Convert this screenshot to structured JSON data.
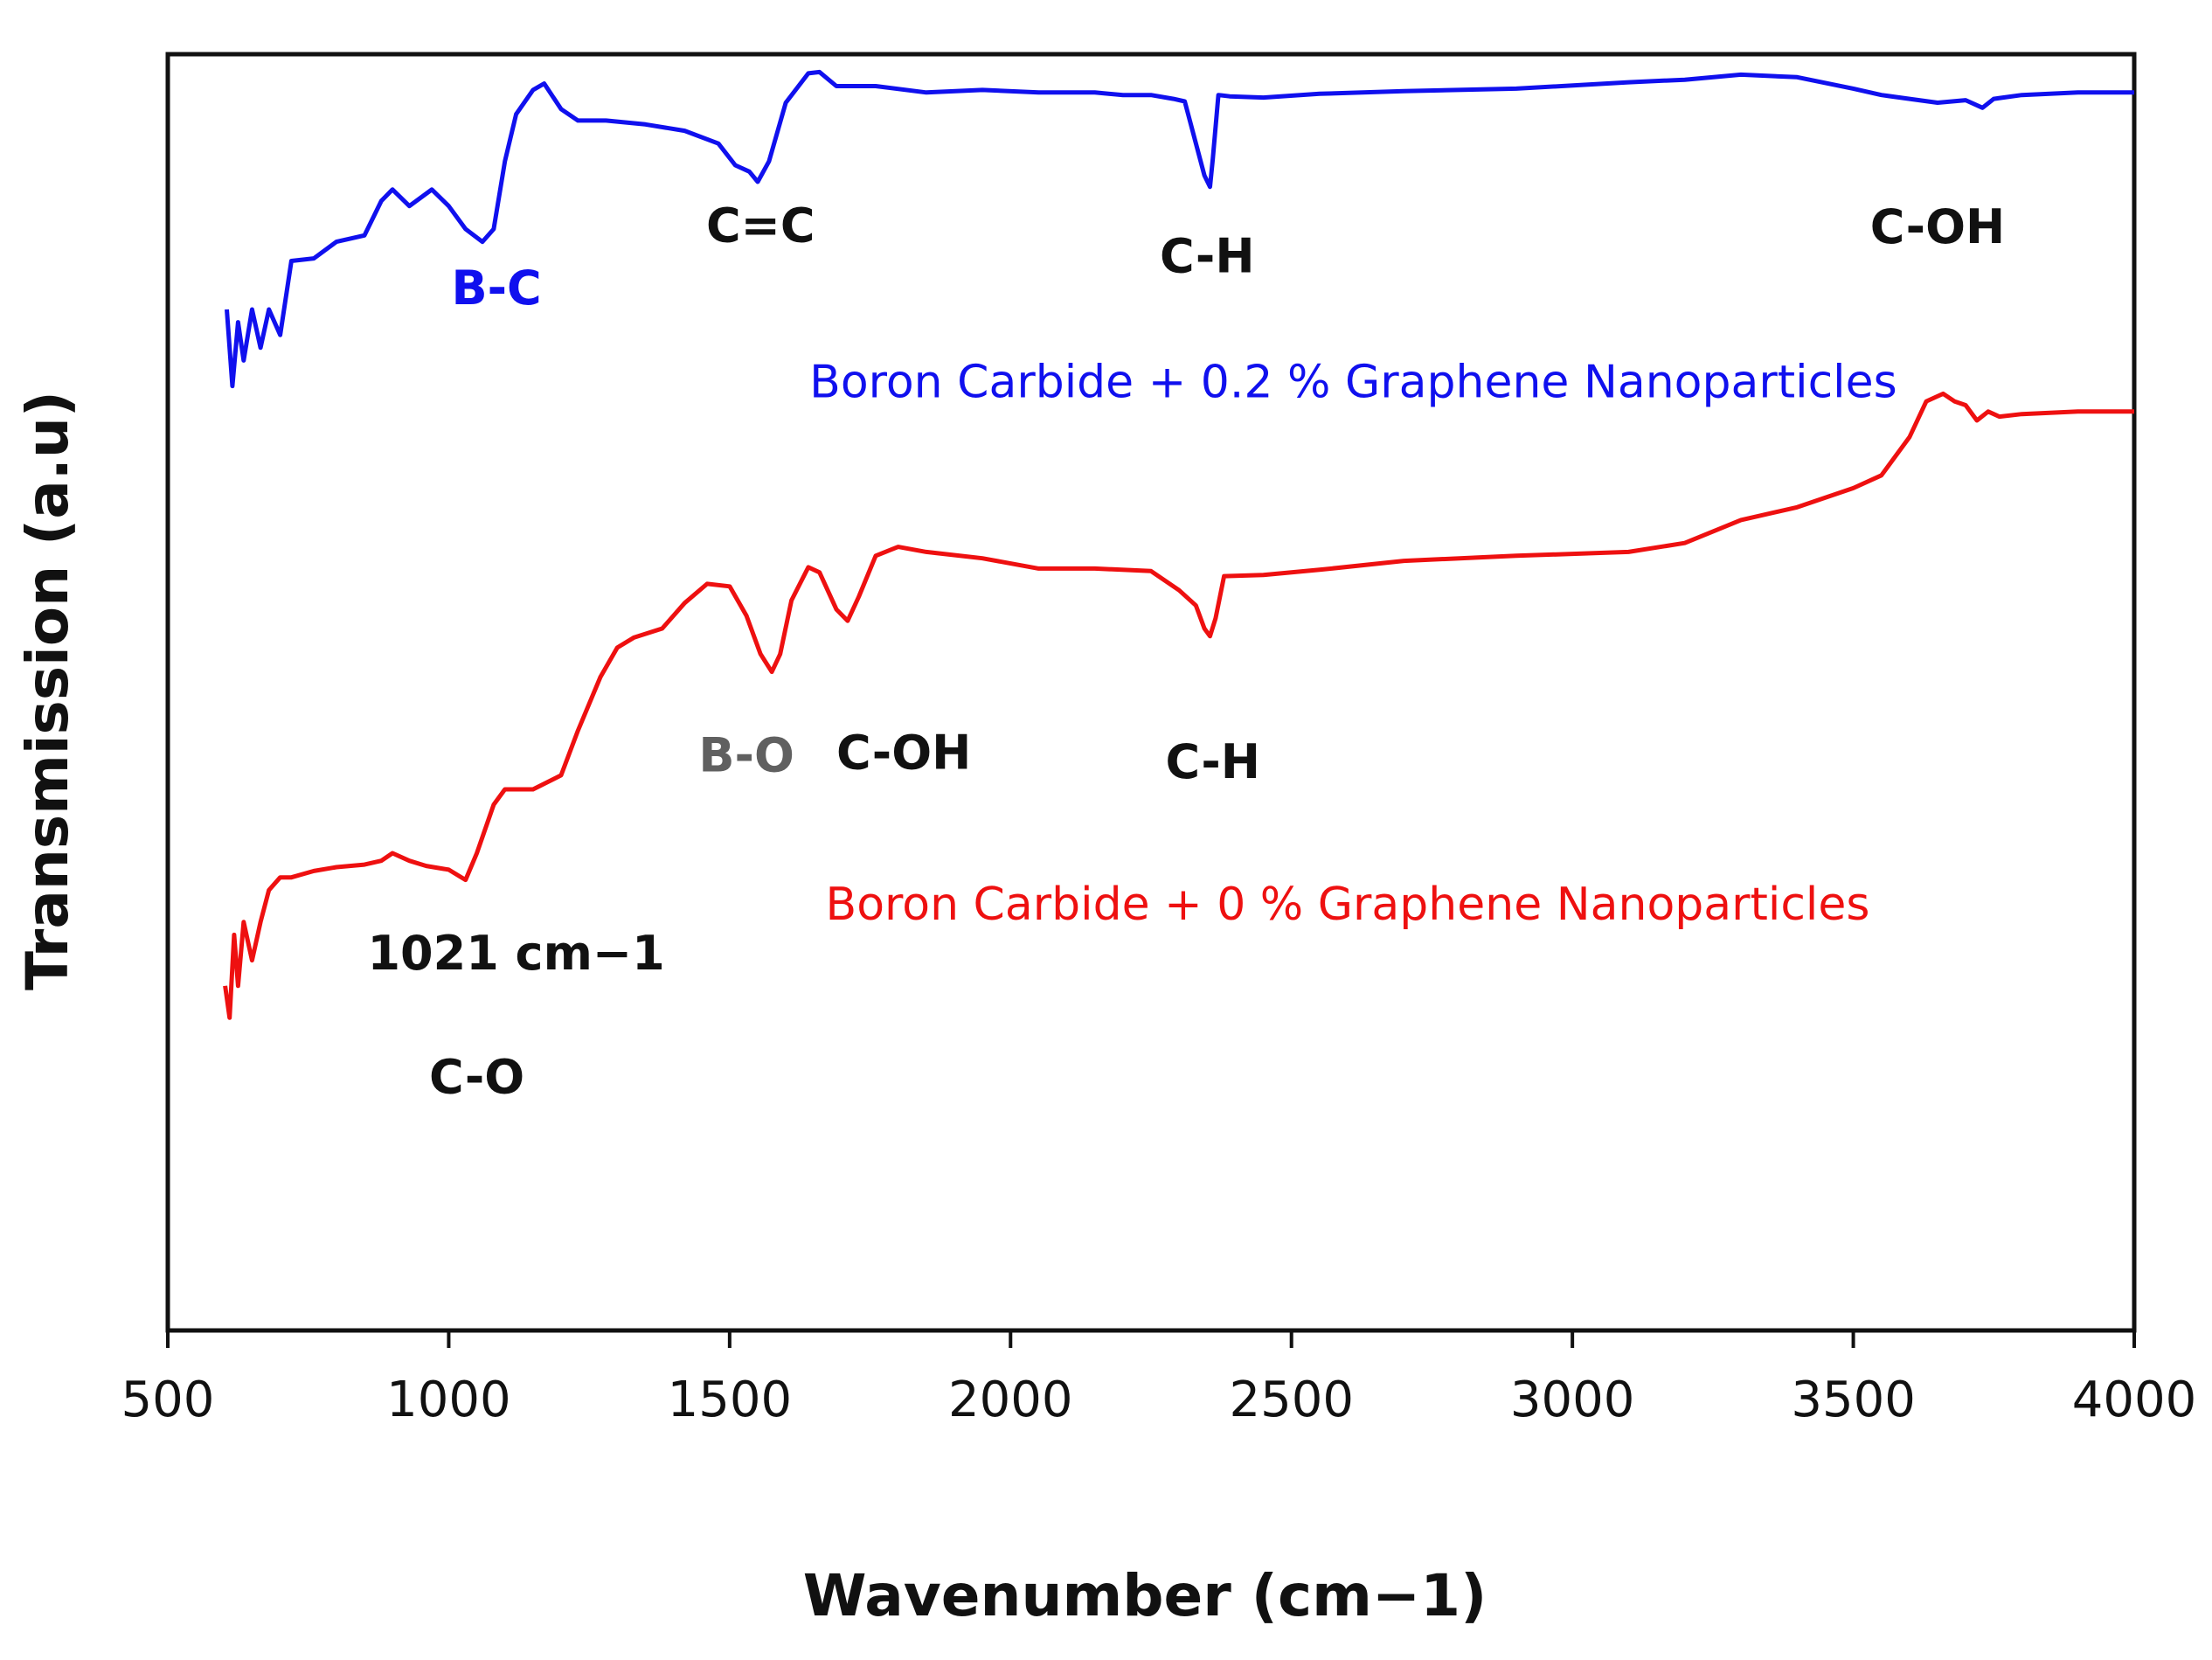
{
  "chart_data": {
    "type": "line",
    "title": "",
    "xlabel": "Wavenumber (cm−1)",
    "ylabel": "Transmission (a.u)",
    "xlim": [
      500,
      4000
    ],
    "ylim": [
      0,
      100
    ],
    "xticks": [
      "500",
      "1000",
      "1500",
      "2000",
      "2500",
      "3000",
      "3500",
      "4000"
    ],
    "grid": false,
    "colors": {
      "blue": "#1010ee",
      "red": "#ee1010",
      "gray": "#606060",
      "dark": "#111111"
    },
    "series": [
      {
        "name": "Boron Carbide + 0.2 % Graphene Nanoparticles",
        "color": "#1010ee",
        "x": [
          605,
          615,
          625,
          635,
          650,
          665,
          680,
          700,
          720,
          760,
          800,
          850,
          880,
          900,
          930,
          970,
          1000,
          1030,
          1060,
          1080,
          1100,
          1120,
          1150,
          1170,
          1200,
          1230,
          1280,
          1350,
          1420,
          1480,
          1510,
          1535,
          1550,
          1570,
          1600,
          1640,
          1660,
          1690,
          1760,
          1850,
          1950,
          2050,
          2150,
          2200,
          2250,
          2290,
          2310,
          2330,
          2345,
          2355,
          2360,
          2370,
          2390,
          2450,
          2550,
          2700,
          2900,
          3100,
          3200,
          3300,
          3400,
          3500,
          3550,
          3600,
          3650,
          3700,
          3730,
          3750,
          3800,
          3900,
          4000
        ],
        "y": [
          80.0,
          74.0,
          79.0,
          76.0,
          80.0,
          77.0,
          80.0,
          78.0,
          83.8,
          84.0,
          85.3,
          85.8,
          88.5,
          89.4,
          88.1,
          89.4,
          88.1,
          86.3,
          85.3,
          86.3,
          91.6,
          95.3,
          97.2,
          97.7,
          95.7,
          94.8,
          94.8,
          94.5,
          94.0,
          93.0,
          91.3,
          90.8,
          90.0,
          91.6,
          96.2,
          98.5,
          98.6,
          97.5,
          97.5,
          97.0,
          97.2,
          97.0,
          97.0,
          96.8,
          96.8,
          96.5,
          96.3,
          93.0,
          90.5,
          89.6,
          91.8,
          96.8,
          96.7,
          96.6,
          96.9,
          97.1,
          97.3,
          97.8,
          98.0,
          98.4,
          98.2,
          97.3,
          96.8,
          96.5,
          96.2,
          96.4,
          95.8,
          96.5,
          96.8,
          97.0,
          97.0
        ]
      },
      {
        "name": "Boron Carbide + 0 % Graphene Nanoparticles",
        "color": "#ee1010",
        "x": [
          602,
          610,
          618,
          625,
          635,
          650,
          665,
          680,
          700,
          720,
          760,
          800,
          850,
          880,
          900,
          930,
          960,
          1000,
          1030,
          1050,
          1080,
          1100,
          1150,
          1200,
          1230,
          1270,
          1300,
          1330,
          1380,
          1420,
          1460,
          1500,
          1530,
          1555,
          1575,
          1590,
          1610,
          1640,
          1660,
          1690,
          1710,
          1730,
          1760,
          1800,
          1850,
          1950,
          2050,
          2150,
          2250,
          2300,
          2330,
          2345,
          2355,
          2365,
          2380,
          2450,
          2550,
          2700,
          2900,
          3100,
          3200,
          3300,
          3400,
          3500,
          3550,
          3600,
          3630,
          3660,
          3680,
          3700,
          3720,
          3740,
          3760,
          3800,
          3900,
          4000
        ],
        "y": [
          27.0,
          24.5,
          31.0,
          27.0,
          32.0,
          29.0,
          32.0,
          34.5,
          35.5,
          35.5,
          36.0,
          36.3,
          36.5,
          36.8,
          37.4,
          36.8,
          36.4,
          36.1,
          35.3,
          37.4,
          41.2,
          42.4,
          42.4,
          43.5,
          47.0,
          51.2,
          53.5,
          54.3,
          55.0,
          57.0,
          58.5,
          58.3,
          56.0,
          53.0,
          51.6,
          53.0,
          57.2,
          59.8,
          59.4,
          56.5,
          55.6,
          57.5,
          60.7,
          61.4,
          61.0,
          60.5,
          59.7,
          59.7,
          59.5,
          58.0,
          56.8,
          55.0,
          54.4,
          55.8,
          59.1,
          59.2,
          59.6,
          60.3,
          60.7,
          61.0,
          61.7,
          63.5,
          64.5,
          66.0,
          67.0,
          70.0,
          72.8,
          73.4,
          72.8,
          72.5,
          71.3,
          72.0,
          71.6,
          71.8,
          72.0,
          72.0
        ]
      }
    ],
    "annotations": [
      {
        "text": "B-C",
        "x": 1085,
        "y": 80.4,
        "color": "#1010ee"
      },
      {
        "text": "C=C",
        "x": 1555,
        "y": 85.3,
        "color": "#111111"
      },
      {
        "text": "C-H",
        "x": 2350,
        "y": 82.9,
        "color": "#111111"
      },
      {
        "text": "C-OH",
        "x": 3650,
        "y": 85.2,
        "color": "#111111"
      },
      {
        "text": "B-O",
        "x": 1530,
        "y": 43.8,
        "color": "#606060"
      },
      {
        "text": "C-OH",
        "x": 1810,
        "y": 44.0,
        "color": "#111111"
      },
      {
        "text": "C-H",
        "x": 2360,
        "y": 43.3,
        "color": "#111111"
      },
      {
        "text": "1021 cm−1",
        "x": 1120,
        "y": 28.3,
        "color": "#111111"
      },
      {
        "text": "C-O",
        "x": 1050,
        "y": 18.6,
        "color": "#111111"
      }
    ],
    "legend": [
      {
        "text": "Boron Carbide + 0.2 % Graphene Nanoparticles",
        "x": 2610,
        "y": 73.1,
        "color": "#1010ee"
      },
      {
        "text": "Boron Carbide + 0 % Graphene Nanoparticles",
        "x": 2600,
        "y": 32.2,
        "color": "#ee1010"
      }
    ]
  }
}
